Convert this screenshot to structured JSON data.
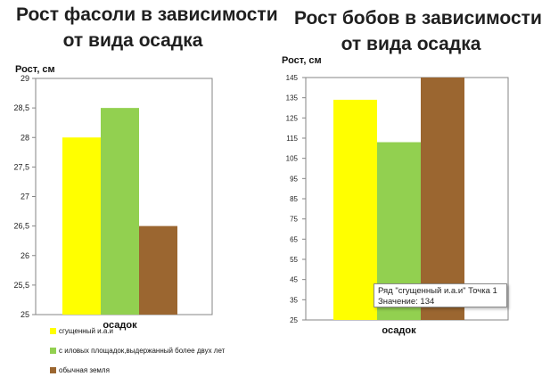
{
  "colors": {
    "yellow": "#ffff00",
    "green": "#92d050",
    "brown": "#9b6630",
    "axis": "#868686"
  },
  "legend": [
    {
      "label": "сгущенный и.а.и",
      "color": "#ffff00"
    },
    {
      "label": "с иловых площадок,выдержанный более двух лет",
      "color": "#92d050"
    },
    {
      "label": "обычная земля",
      "color": "#9b6630"
    }
  ],
  "tooltip": {
    "line1": "Ряд \"сгущенный и.а.и\" Точка 1",
    "line2": "Значение: 134"
  },
  "chart_data": [
    {
      "type": "bar",
      "title_line1": "Рост фасоли в зависимости",
      "title_line2": "от вида осадка",
      "ylabel": "Рост, см",
      "categories": [
        "осадок"
      ],
      "ylim": [
        25,
        29
      ],
      "yticks": [
        25,
        25.5,
        26,
        26.5,
        27,
        27.5,
        28,
        28.5,
        29
      ],
      "ytick_labels": [
        "25",
        "25,5",
        "26",
        "26,5",
        "27",
        "27,5",
        "28",
        "28,5",
        "29"
      ],
      "grid": false,
      "series": [
        {
          "name": "сгущенный и.а.и",
          "values": [
            28
          ]
        },
        {
          "name": "с иловых площадок,выдержанный более двух лет",
          "values": [
            28.5
          ]
        },
        {
          "name": "обычная земля",
          "values": [
            26.5
          ]
        }
      ]
    },
    {
      "type": "bar",
      "title_line1": "Рост бобов в зависимости",
      "title_line2": "от вида осадка",
      "ylabel": "Рост, см",
      "categories": [
        "осадок"
      ],
      "ylim": [
        25,
        145
      ],
      "yticks": [
        25,
        35,
        45,
        55,
        65,
        75,
        85,
        95,
        105,
        115,
        125,
        135,
        145
      ],
      "ytick_labels": [
        "25",
        "35",
        "45",
        "55",
        "65",
        "75",
        "85",
        "95",
        "105",
        "115",
        "125",
        "135",
        "145"
      ],
      "grid": false,
      "series": [
        {
          "name": "сгущенный и.а.и",
          "values": [
            134
          ]
        },
        {
          "name": "с иловых площадок,выдержанный более двух лет",
          "values": [
            113
          ]
        },
        {
          "name": "обычная земля",
          "values": [
            147
          ]
        }
      ]
    }
  ]
}
